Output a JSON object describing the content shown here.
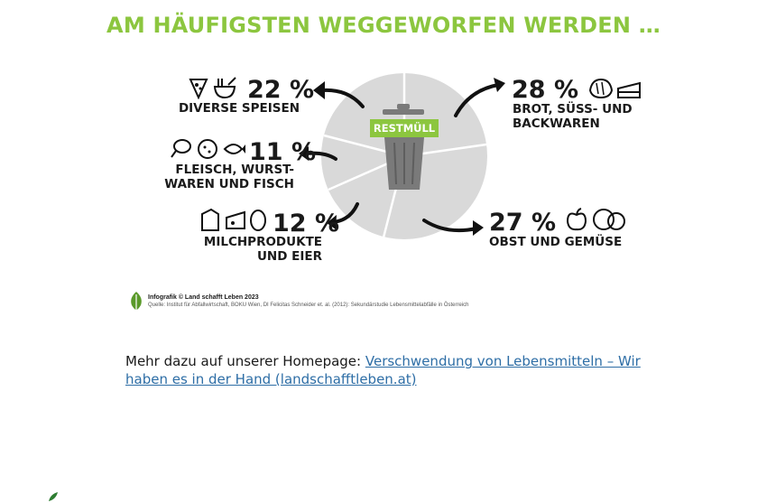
{
  "infographic": {
    "title": "AM HÄUFIGSTEN WEGGEWORFEN WERDEN …",
    "bin_label": "RESTMÜLL",
    "items": [
      {
        "pct": "22 %",
        "label_lines": [
          "DIVERSE SPEISEN"
        ]
      },
      {
        "pct": "11 %",
        "label_lines": [
          "FLEISCH, WURST-",
          "WAREN UND FISCH"
        ]
      },
      {
        "pct": "12 %",
        "label_lines": [
          "MILCHPRODUKTE",
          "UND EIER"
        ]
      },
      {
        "pct": "28 %",
        "label_lines": [
          "BROT, SÜSS- UND",
          "BACKWAREN"
        ]
      },
      {
        "pct": "27 %",
        "label_lines": [
          "OBST UND GEMÜSE"
        ]
      }
    ],
    "credit_line1": "Infografik © Land schafft Leben 2023",
    "credit_line2": "Quelle: Institut für Abfallwirtschaft, BOKU Wien, DI Felicitas Schneider et. al. (2012): Sekundärstudie Lebensmittelabfälle in Österreich",
    "colors": {
      "accent_green": "#8cc63f",
      "pie_gray": "#d8d8d8",
      "bin_gray": "#7a7a7a",
      "text": "#1a1a1a"
    },
    "icons": [
      "pizza-icon",
      "noodle-bowl-icon",
      "chicken-leg-icon",
      "sausage-icon",
      "fish-icon",
      "milk-carton-icon",
      "cheese-icon",
      "egg-icon",
      "bread-icon",
      "cake-icon",
      "apple-icon",
      "vegetable-icon"
    ]
  },
  "footer": {
    "intro": "Mehr dazu auf unserer Homepage: ",
    "link_text": "Verschwendung von Lebensmitteln – Wir haben es in der Hand (landschafftleben.at)",
    "link_color": "#2e6ea6"
  }
}
